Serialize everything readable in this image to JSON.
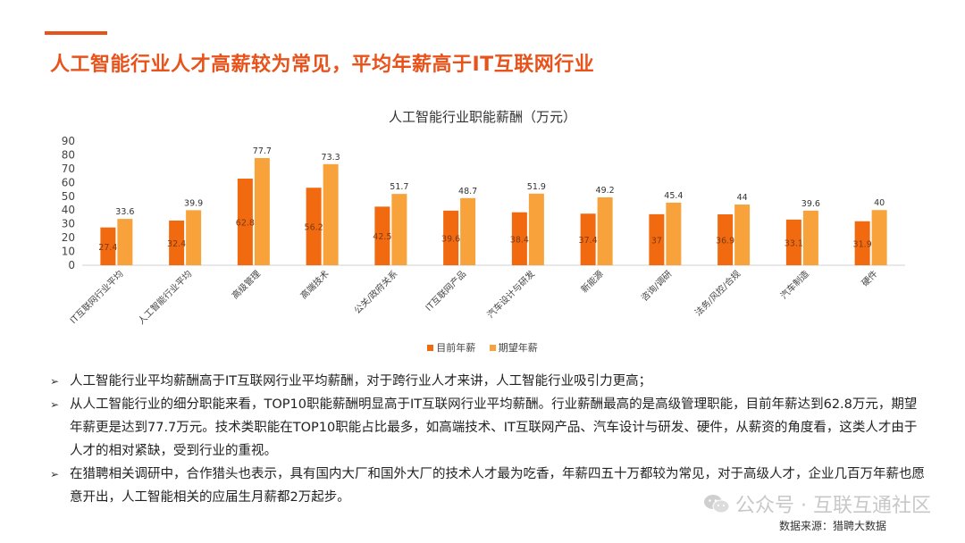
{
  "header": {
    "title": "人工智能行业人才高薪较为常见，平均年薪高于IT互联网行业"
  },
  "colors": {
    "accent": "#e8531c",
    "current": "#f26a10",
    "expected": "#f7a23b"
  },
  "chart_data": {
    "type": "bar",
    "title": "人工智能行业职能薪酬（万元）",
    "categories": [
      "IT互联网行业平均",
      "人工智能行业平均",
      "高级管理",
      "高端技术",
      "公关/政府关系",
      "IT互联网产品",
      "汽车设计与研发",
      "新能源",
      "咨询/调研",
      "法务/风控/合规",
      "汽车制造",
      "硬件"
    ],
    "series": [
      {
        "name": "目前年薪",
        "values": [
          27.4,
          32.4,
          62.8,
          56.2,
          42.5,
          39.6,
          38.4,
          37.4,
          37,
          36.9,
          33.1,
          31.9
        ]
      },
      {
        "name": "期望年薪",
        "values": [
          33.6,
          39.9,
          77.7,
          73.3,
          51.7,
          48.7,
          51.9,
          49.2,
          45.4,
          44,
          39.6,
          40
        ]
      }
    ],
    "ylim": [
      0,
      90
    ],
    "yticks": [
      0,
      10,
      20,
      30,
      40,
      50,
      60,
      70,
      80,
      90
    ],
    "grid": false,
    "legend": "bottom"
  },
  "legend": {
    "current": "目前年薪",
    "expected": "期望年薪"
  },
  "bullets": [
    "人工智能行业平均薪酬高于IT互联网行业平均薪酬，对于跨行业人才来讲，人工智能行业吸引力更高；",
    "从人工智能行业的细分职能来看，TOP10职能薪酬明显高于IT互联网行业平均薪酬。行业薪酬最高的是高级管理职能，目前年薪达到62.8万元，期望年薪更是达到77.7万元。技术类职能在TOP10职能占比最多，如高端技术、IT互联网产品、汽车设计与研发、硬件，从薪资的角度看，这类人才由于人才的相对紧缺，受到行业的重视。",
    "在猎聘相关调研中，合作猎头也表示，具有国内大厂和国外大厂的技术人才最为吃香，年薪四五十万都较为常见，对于高级人才，企业几百万年薪也愿意开出，人工智能相关的应届生月薪都2万起步。"
  ],
  "bullet_marker": "➢",
  "watermark": "公众号 · 互联互通社区",
  "source": "数据来源：猎聘大数据"
}
